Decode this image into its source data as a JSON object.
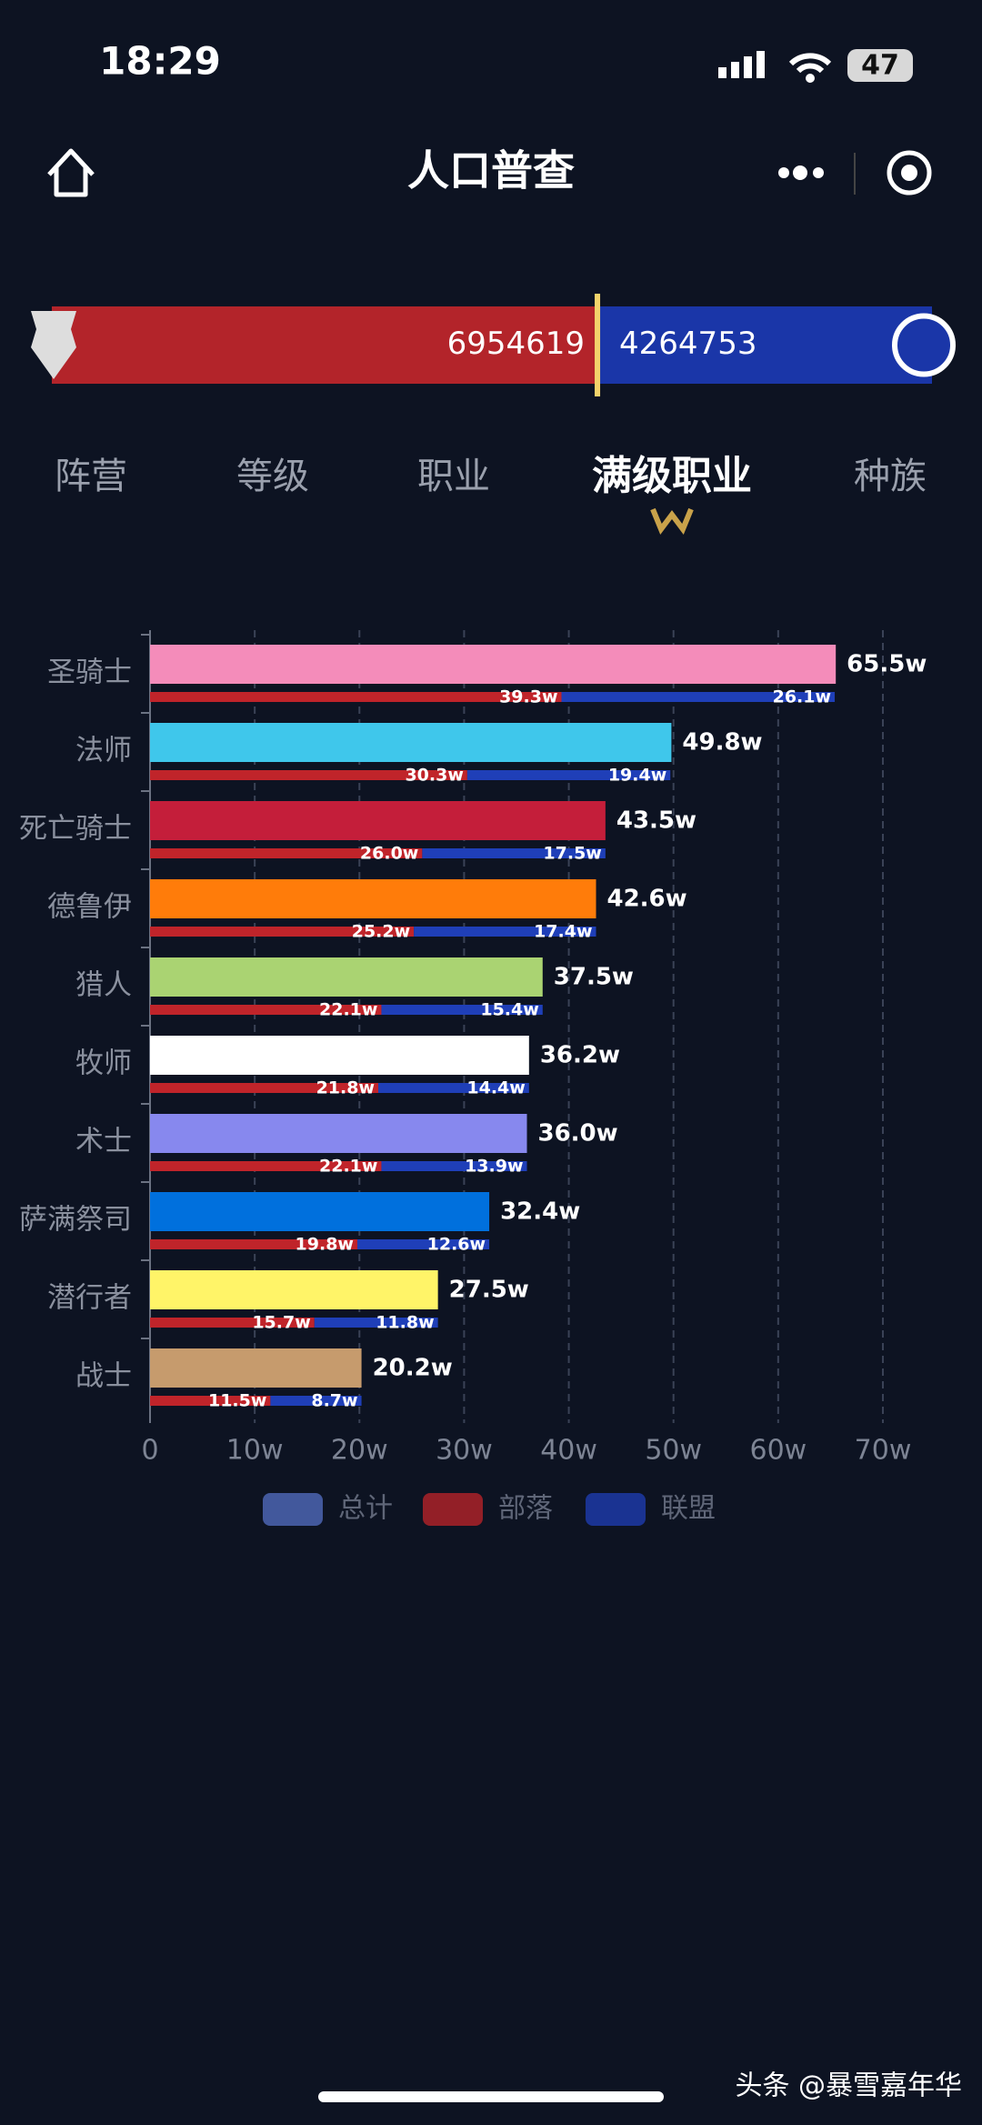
{
  "status": {
    "time": "18:29",
    "battery": "47"
  },
  "header": {
    "title": "人口普查"
  },
  "faction": {
    "horde": 6954619,
    "alliance": 4264753
  },
  "tabs": [
    "阵营",
    "等级",
    "职业",
    "满级职业",
    "种族"
  ],
  "chart_data": {
    "type": "bar",
    "orientation": "horizontal",
    "categories": [
      "圣骑士",
      "法师",
      "死亡骑士",
      "德鲁伊",
      "猎人",
      "牧师",
      "术士",
      "萨满祭司",
      "潜行者",
      "战士"
    ],
    "series": [
      {
        "name": "总计",
        "color": "#5470c6",
        "colors": [
          "#f48cba",
          "#3fc7eb",
          "#c41e3a",
          "#ff7c0a",
          "#aad372",
          "#ffffff",
          "#8788ee",
          "#0070dd",
          "#fff468",
          "#c69b6d"
        ],
        "values": [
          65.5,
          49.8,
          43.5,
          42.6,
          37.5,
          36.2,
          36.0,
          32.4,
          27.5,
          20.2
        ],
        "value_labels": [
          "65.5w",
          "49.8w",
          "43.5w",
          "42.6w",
          "37.5w",
          "36.2w",
          "36.0w",
          "32.4w",
          "27.5w",
          "20.2w"
        ]
      },
      {
        "name": "部落",
        "color": "#c0242a",
        "values": [
          39.3,
          30.3,
          26.0,
          25.2,
          22.1,
          21.8,
          22.1,
          19.8,
          15.7,
          11.5
        ],
        "value_labels": [
          "39.3w",
          "30.3w",
          "26.0w",
          "25.2w",
          "22.1w",
          "21.8w",
          "22.1w",
          "19.8w",
          "15.7w",
          "11.5w"
        ]
      },
      {
        "name": "联盟",
        "color": "#1f3fb8",
        "values": [
          26.1,
          19.4,
          17.5,
          17.4,
          15.4,
          14.4,
          13.9,
          12.6,
          11.8,
          8.7
        ],
        "value_labels": [
          "26.1w",
          "19.4w",
          "17.5w",
          "17.4w",
          "15.4w",
          "14.4w",
          "13.9w",
          "12.6w",
          "11.8w",
          "8.7w"
        ]
      }
    ],
    "xlim": [
      0,
      70
    ],
    "xticks": [
      0,
      {
        "value": 10,
        "label": "10w"
      },
      {
        "value": 20,
        "label": "20w"
      },
      {
        "value": 30,
        "label": "30w"
      },
      {
        "value": 40,
        "label": "40w"
      },
      {
        "value": 50,
        "label": "50w"
      },
      {
        "value": 60,
        "label": "60w"
      },
      {
        "value": 70,
        "label": "70w"
      }
    ],
    "grid": true,
    "legend": "bottom"
  },
  "footer": {
    "source": "头条 @暴雪嘉年华"
  }
}
